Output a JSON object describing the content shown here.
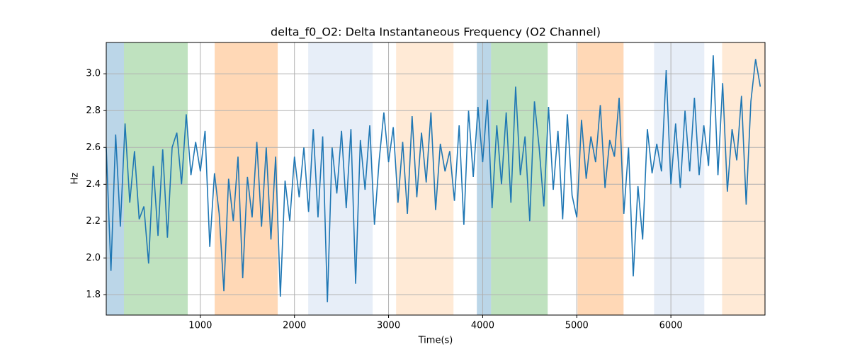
{
  "chart_data": {
    "type": "line",
    "title": "delta_f0_O2: Delta Instantaneous Frequency (O2 Channel)",
    "x_label": "Time(s)",
    "y_label": "Hz",
    "xlim": [
      0,
      7000
    ],
    "ylim": [
      1.69,
      3.17
    ],
    "xticks": [
      1000,
      2000,
      3000,
      4000,
      5000,
      6000
    ],
    "yticks": [
      1.8,
      {
        "value": 2,
        "label": "2.0"
      },
      2.2,
      2.4,
      2.6,
      2.8,
      {
        "value": 3,
        "label": "3.0"
      }
    ],
    "grid": true,
    "spans": [
      {
        "x": [
          0,
          188
        ],
        "color": "#1f77b4"
      },
      {
        "x": [
          188,
          866
        ],
        "color": "#2ca02c"
      },
      {
        "x": [
          1152,
          1822
        ],
        "color": "#ff7f0e"
      },
      {
        "x": [
          2146,
          2831
        ],
        "color": "#aec7e8"
      },
      {
        "x": [
          3080,
          3690
        ],
        "color": "#ffbb78"
      },
      {
        "x": [
          3938,
          4089
        ],
        "color": "#1f77b4"
      },
      {
        "x": [
          4089,
          4691
        ],
        "color": "#2ca02c"
      },
      {
        "x": [
          5008,
          5497
        ],
        "color": "#ff7f0e"
      },
      {
        "x": [
          5821,
          6355
        ],
        "color": "#aec7e8"
      },
      {
        "x": [
          6544,
          7000
        ],
        "color": "#ffbb78"
      }
    ],
    "x": [
      0,
      50,
      100,
      150,
      200,
      250,
      300,
      350,
      400,
      450,
      500,
      550,
      600,
      650,
      700,
      750,
      800,
      850,
      900,
      950,
      1000,
      1050,
      1100,
      1150,
      1200,
      1250,
      1300,
      1350,
      1400,
      1450,
      1500,
      1550,
      1600,
      1650,
      1700,
      1750,
      1800,
      1850,
      1900,
      1950,
      2000,
      2050,
      2100,
      2150,
      2200,
      2250,
      2300,
      2350,
      2400,
      2450,
      2500,
      2550,
      2600,
      2650,
      2700,
      2750,
      2800,
      2850,
      2900,
      2950,
      3000,
      3050,
      3100,
      3150,
      3200,
      3250,
      3300,
      3350,
      3400,
      3450,
      3500,
      3550,
      3600,
      3650,
      3700,
      3750,
      3800,
      3850,
      3900,
      3950,
      4000,
      4050,
      4100,
      4150,
      4200,
      4250,
      4300,
      4350,
      4400,
      4450,
      4500,
      4550,
      4600,
      4650,
      4700,
      4750,
      4800,
      4850,
      4900,
      4950,
      5000,
      5050,
      5100,
      5150,
      5200,
      5250,
      5300,
      5350,
      5400,
      5450,
      5500,
      5550,
      5600,
      5650,
      5700,
      5750,
      5800,
      5850,
      5900,
      5950,
      6000,
      6050,
      6100,
      6150,
      6200,
      6250,
      6300,
      6350,
      6400,
      6450,
      6500,
      6550,
      6600,
      6650,
      6700,
      6750,
      6800,
      6850,
      6900,
      6950
    ],
    "series": [
      {
        "color": "#1f77b4",
        "values": [
          2.6,
          1.93,
          2.67,
          2.17,
          2.73,
          2.3,
          2.58,
          2.21,
          2.28,
          1.97,
          2.5,
          2.12,
          2.59,
          2.11,
          2.6,
          2.68,
          2.4,
          2.78,
          2.45,
          2.63,
          2.47,
          2.69,
          2.06,
          2.46,
          2.24,
          1.82,
          2.43,
          2.2,
          2.55,
          1.89,
          2.44,
          2.22,
          2.63,
          2.17,
          2.6,
          2.1,
          2.55,
          1.79,
          2.42,
          2.2,
          2.55,
          2.33,
          2.6,
          2.25,
          2.7,
          2.22,
          2.66,
          1.76,
          2.6,
          2.35,
          2.69,
          2.27,
          2.7,
          1.86,
          2.64,
          2.37,
          2.72,
          2.18,
          2.53,
          2.79,
          2.52,
          2.71,
          2.3,
          2.63,
          2.24,
          2.77,
          2.33,
          2.68,
          2.41,
          2.79,
          2.26,
          2.62,
          2.47,
          2.58,
          2.31,
          2.72,
          2.18,
          2.8,
          2.44,
          2.82,
          2.52,
          2.86,
          2.27,
          2.72,
          2.4,
          2.79,
          2.3,
          2.93,
          2.45,
          2.66,
          2.2,
          2.85,
          2.6,
          2.28,
          2.82,
          2.37,
          2.69,
          2.21,
          2.78,
          2.34,
          2.22,
          2.75,
          2.43,
          2.66,
          2.52,
          2.83,
          2.38,
          2.64,
          2.55,
          2.87,
          2.24,
          2.6,
          1.9,
          2.39,
          2.1,
          2.7,
          2.46,
          2.62,
          2.47,
          3.02,
          2.4,
          2.73,
          2.38,
          2.8,
          2.47,
          2.87,
          2.45,
          2.72,
          2.5,
          3.1,
          2.45,
          2.95,
          2.36,
          2.7,
          2.53,
          2.88,
          2.29,
          2.85,
          3.08,
          2.93
        ]
      }
    ]
  }
}
